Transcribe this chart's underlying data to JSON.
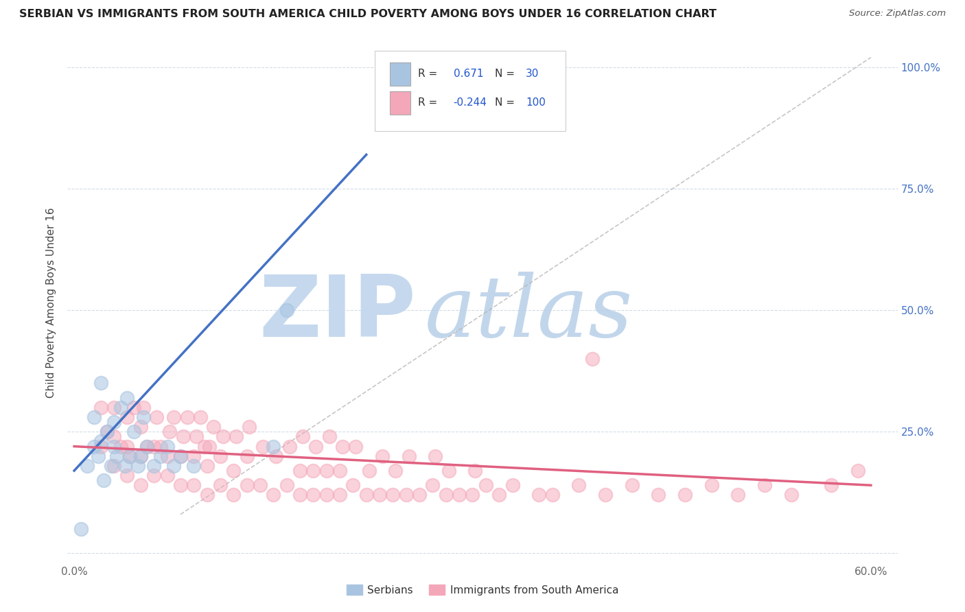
{
  "title": "SERBIAN VS IMMIGRANTS FROM SOUTH AMERICA CHILD POVERTY AMONG BOYS UNDER 16 CORRELATION CHART",
  "source": "Source: ZipAtlas.com",
  "ylabel": "Child Poverty Among Boys Under 16",
  "xlim": [
    -0.005,
    0.62
  ],
  "ylim": [
    -0.02,
    1.05
  ],
  "xtick_positions": [
    0.0,
    0.1,
    0.2,
    0.3,
    0.4,
    0.5,
    0.6
  ],
  "xticklabels": [
    "0.0%",
    "",
    "",
    "",
    "",
    "",
    "60.0%"
  ],
  "ytick_positions": [
    0.0,
    0.25,
    0.5,
    0.75,
    1.0
  ],
  "yticklabels_right": [
    "",
    "25.0%",
    "50.0%",
    "75.0%",
    "100.0%"
  ],
  "r_serbian": "0.671",
  "n_serbian": "30",
  "r_south_america": "-0.244",
  "n_south_america": "100",
  "serbian_color": "#a8c4e0",
  "south_america_color": "#f4a7b9",
  "serbian_line_color": "#4472c4",
  "south_america_line_color": "#e06080",
  "background_color": "#ffffff",
  "watermark_zip": "ZIP",
  "watermark_atlas": "atlas",
  "watermark_color": "#d8e8f4",
  "legend_labels": [
    "Serbians",
    "Immigrants from South America"
  ],
  "grid_color": "#d0dce8",
  "title_color": "#222222",
  "source_color": "#555555",
  "right_tick_color": "#4472c4",
  "serbian_points_x": [
    0.005,
    0.01,
    0.015,
    0.015,
    0.018,
    0.02,
    0.02,
    0.022,
    0.025,
    0.028,
    0.03,
    0.03,
    0.032,
    0.035,
    0.038,
    0.04,
    0.042,
    0.045,
    0.048,
    0.05,
    0.052,
    0.055,
    0.06,
    0.065,
    0.07,
    0.075,
    0.08,
    0.09,
    0.15,
    0.16
  ],
  "serbian_points_y": [
    0.05,
    0.18,
    0.22,
    0.28,
    0.2,
    0.23,
    0.35,
    0.15,
    0.25,
    0.18,
    0.22,
    0.27,
    0.2,
    0.3,
    0.18,
    0.32,
    0.2,
    0.25,
    0.18,
    0.2,
    0.28,
    0.22,
    0.18,
    0.2,
    0.22,
    0.18,
    0.2,
    0.18,
    0.22,
    0.5
  ],
  "south_america_points_x": [
    0.02,
    0.02,
    0.025,
    0.03,
    0.03,
    0.03,
    0.035,
    0.04,
    0.04,
    0.04,
    0.042,
    0.045,
    0.05,
    0.05,
    0.05,
    0.052,
    0.055,
    0.06,
    0.06,
    0.062,
    0.065,
    0.07,
    0.07,
    0.072,
    0.075,
    0.08,
    0.08,
    0.082,
    0.085,
    0.09,
    0.09,
    0.092,
    0.095,
    0.098,
    0.1,
    0.1,
    0.102,
    0.105,
    0.11,
    0.11,
    0.112,
    0.12,
    0.12,
    0.122,
    0.13,
    0.13,
    0.132,
    0.14,
    0.142,
    0.15,
    0.152,
    0.16,
    0.162,
    0.17,
    0.17,
    0.172,
    0.18,
    0.18,
    0.182,
    0.19,
    0.19,
    0.192,
    0.2,
    0.2,
    0.202,
    0.21,
    0.212,
    0.22,
    0.222,
    0.23,
    0.232,
    0.24,
    0.242,
    0.25,
    0.252,
    0.26,
    0.27,
    0.272,
    0.28,
    0.282,
    0.29,
    0.3,
    0.302,
    0.31,
    0.32,
    0.33,
    0.35,
    0.36,
    0.38,
    0.39,
    0.4,
    0.42,
    0.44,
    0.46,
    0.48,
    0.5,
    0.52,
    0.54,
    0.57,
    0.59
  ],
  "south_america_points_y": [
    0.22,
    0.3,
    0.25,
    0.18,
    0.24,
    0.3,
    0.22,
    0.16,
    0.22,
    0.28,
    0.2,
    0.3,
    0.14,
    0.2,
    0.26,
    0.3,
    0.22,
    0.16,
    0.22,
    0.28,
    0.22,
    0.16,
    0.2,
    0.25,
    0.28,
    0.14,
    0.2,
    0.24,
    0.28,
    0.14,
    0.2,
    0.24,
    0.28,
    0.22,
    0.12,
    0.18,
    0.22,
    0.26,
    0.14,
    0.2,
    0.24,
    0.12,
    0.17,
    0.24,
    0.14,
    0.2,
    0.26,
    0.14,
    0.22,
    0.12,
    0.2,
    0.14,
    0.22,
    0.12,
    0.17,
    0.24,
    0.12,
    0.17,
    0.22,
    0.12,
    0.17,
    0.24,
    0.12,
    0.17,
    0.22,
    0.14,
    0.22,
    0.12,
    0.17,
    0.12,
    0.2,
    0.12,
    0.17,
    0.12,
    0.2,
    0.12,
    0.14,
    0.2,
    0.12,
    0.17,
    0.12,
    0.12,
    0.17,
    0.14,
    0.12,
    0.14,
    0.12,
    0.12,
    0.14,
    0.4,
    0.12,
    0.14,
    0.12,
    0.12,
    0.14,
    0.12,
    0.14,
    0.12,
    0.14,
    0.17
  ],
  "serbian_line_x": [
    0.0,
    0.22
  ],
  "serbian_line_y": [
    0.17,
    0.82
  ],
  "south_america_line_x": [
    0.0,
    0.6
  ],
  "south_america_line_y": [
    0.22,
    0.14
  ],
  "dash_line_x": [
    0.08,
    0.6
  ],
  "dash_line_y": [
    0.08,
    1.02
  ]
}
